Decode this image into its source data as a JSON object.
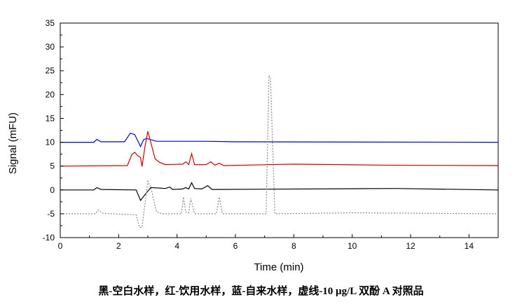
{
  "chart_data": {
    "type": "line",
    "xlabel": "Time (min)",
    "ylabel": "Signal (mFU)",
    "xlim": [
      0,
      15
    ],
    "ylim": [
      -10,
      35
    ],
    "xticks": [
      0,
      2,
      4,
      6,
      8,
      10,
      12,
      14
    ],
    "yticks": [
      -10,
      -5,
      0,
      5,
      10,
      15,
      20,
      25,
      30,
      35
    ],
    "grid": false,
    "caption": "黑-空白水样，红-饮用水样，蓝-自来水样，虚线-10 μg/L 双酚 A 对照品",
    "series": [
      {
        "color": "#0000cc",
        "dash": false,
        "points": [
          [
            0,
            10
          ],
          [
            1.15,
            10
          ],
          [
            1.25,
            10.6
          ],
          [
            1.4,
            10.1
          ],
          [
            2.2,
            10.1
          ],
          [
            2.4,
            11.9
          ],
          [
            2.55,
            11.6
          ],
          [
            2.75,
            9.1
          ],
          [
            2.85,
            10.5
          ],
          [
            2.95,
            10.8
          ],
          [
            3.3,
            10.2
          ],
          [
            5,
            10.2
          ],
          [
            6,
            10.1
          ],
          [
            15,
            10
          ]
        ]
      },
      {
        "color": "#cc0000",
        "dash": false,
        "points": [
          [
            0,
            5
          ],
          [
            2.3,
            5.1
          ],
          [
            2.45,
            7.4
          ],
          [
            2.55,
            7.9
          ],
          [
            2.65,
            7.2
          ],
          [
            2.75,
            6.8
          ],
          [
            2.8,
            4.9
          ],
          [
            2.9,
            9
          ],
          [
            3.0,
            12.3
          ],
          [
            3.1,
            10
          ],
          [
            3.25,
            6.5
          ],
          [
            3.4,
            5.8
          ],
          [
            3.6,
            5.3
          ],
          [
            4.2,
            5.4
          ],
          [
            4.3,
            5.9
          ],
          [
            4.4,
            5.3
          ],
          [
            4.5,
            7.6
          ],
          [
            4.6,
            5.3
          ],
          [
            5.0,
            5.3
          ],
          [
            5.15,
            5.9
          ],
          [
            5.3,
            5.2
          ],
          [
            5.45,
            5.6
          ],
          [
            5.6,
            5.1
          ],
          [
            8,
            5.4
          ],
          [
            11,
            5.2
          ],
          [
            15,
            5.1
          ]
        ]
      },
      {
        "color": "#000000",
        "dash": false,
        "points": [
          [
            0,
            0
          ],
          [
            1.15,
            0
          ],
          [
            1.25,
            0.5
          ],
          [
            1.4,
            0.1
          ],
          [
            2.6,
            0
          ],
          [
            2.75,
            -2.2
          ],
          [
            2.9,
            -1
          ],
          [
            3.1,
            0.5
          ],
          [
            3.6,
            0.3
          ],
          [
            3.75,
            0.6
          ],
          [
            3.85,
            0.1
          ],
          [
            4.2,
            0.2
          ],
          [
            4.3,
            0.5
          ],
          [
            4.4,
            0.2
          ],
          [
            4.5,
            1.5
          ],
          [
            4.6,
            0.3
          ],
          [
            4.85,
            0.2
          ],
          [
            5.05,
            0.9
          ],
          [
            5.2,
            0.1
          ],
          [
            11.5,
            0.3
          ],
          [
            15,
            0
          ]
        ]
      },
      {
        "color": "#888888",
        "dash": true,
        "points": [
          [
            0,
            -5
          ],
          [
            1.2,
            -5
          ],
          [
            1.3,
            -4.2
          ],
          [
            1.45,
            -4.9
          ],
          [
            2.6,
            -5.2
          ],
          [
            2.72,
            -7.9
          ],
          [
            2.8,
            -7.8
          ],
          [
            2.9,
            -3
          ],
          [
            3.0,
            1.8
          ],
          [
            3.1,
            0.5
          ],
          [
            3.3,
            -4.6
          ],
          [
            3.5,
            -5
          ],
          [
            4.15,
            -5
          ],
          [
            4.22,
            -1.5
          ],
          [
            4.3,
            -4.6
          ],
          [
            4.4,
            -4.8
          ],
          [
            4.47,
            -1.8
          ],
          [
            4.6,
            -5
          ],
          [
            5.35,
            -5
          ],
          [
            5.45,
            -1.5
          ],
          [
            5.55,
            -5
          ],
          [
            7.05,
            -5
          ],
          [
            7.15,
            24
          ],
          [
            7.2,
            23.5
          ],
          [
            7.35,
            -5
          ],
          [
            10,
            -4.8
          ],
          [
            15,
            -5
          ]
        ]
      }
    ]
  }
}
